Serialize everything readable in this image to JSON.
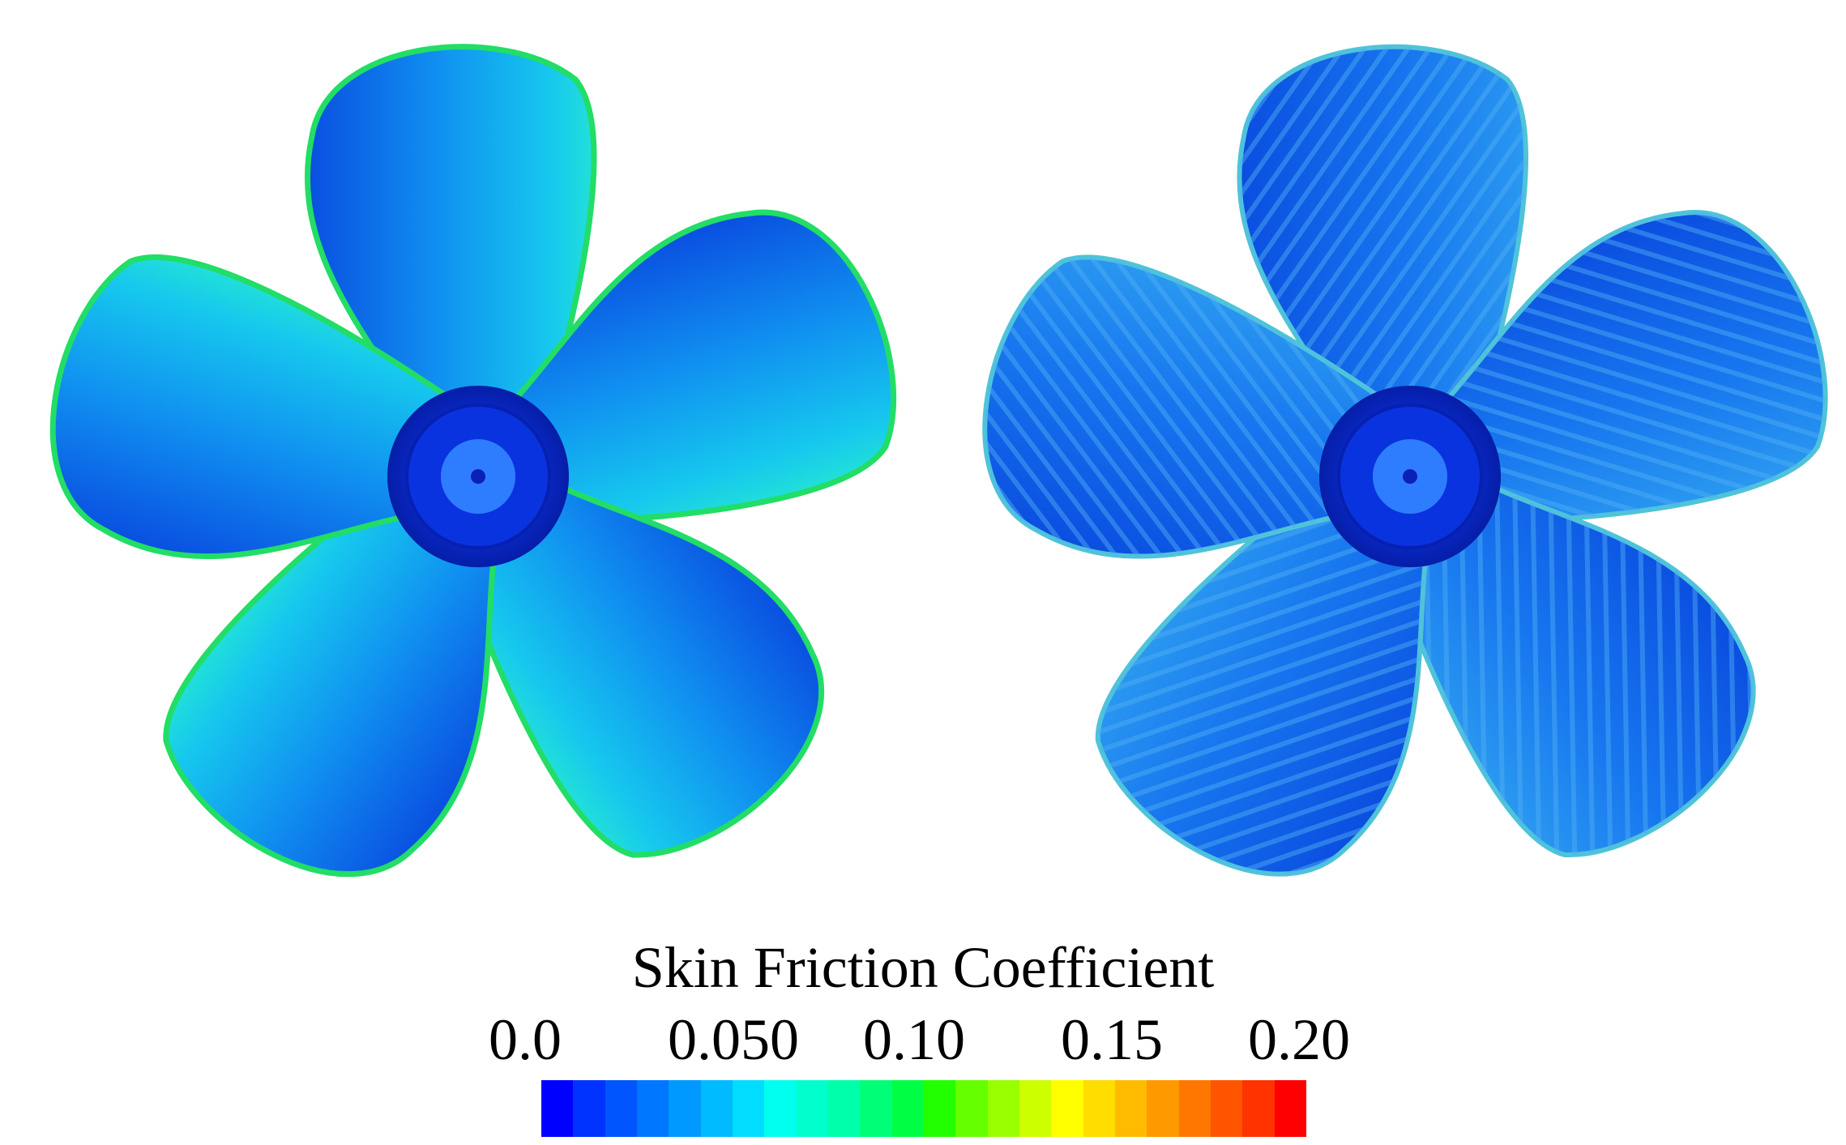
{
  "figure": {
    "panels": [
      {
        "id": "left",
        "blades": 5,
        "surface": "smooth-gradient",
        "edge_color": "#22dd66"
      },
      {
        "id": "right",
        "blades": 5,
        "surface": "streaked",
        "edge_color": "#4fc3d9"
      }
    ]
  },
  "legend": {
    "title": "Skin Friction Coefficient",
    "ticks": [
      "0.0",
      "0.050",
      "0.10",
      "0.15",
      "0.20"
    ],
    "tick_values": [
      0.0,
      0.05,
      0.1,
      0.15,
      0.2
    ],
    "range": [
      0.0,
      0.2
    ],
    "colors": [
      "#0000ff",
      "#0033ff",
      "#0055ff",
      "#0077ff",
      "#0099ff",
      "#00bbff",
      "#00ddff",
      "#00ffee",
      "#00ffcc",
      "#00ffaa",
      "#00ff77",
      "#00ff44",
      "#22ff00",
      "#66ff00",
      "#99ff00",
      "#ccff00",
      "#ffff00",
      "#ffdd00",
      "#ffbb00",
      "#ff9900",
      "#ff7700",
      "#ff5500",
      "#ff3300",
      "#ff0000"
    ]
  }
}
